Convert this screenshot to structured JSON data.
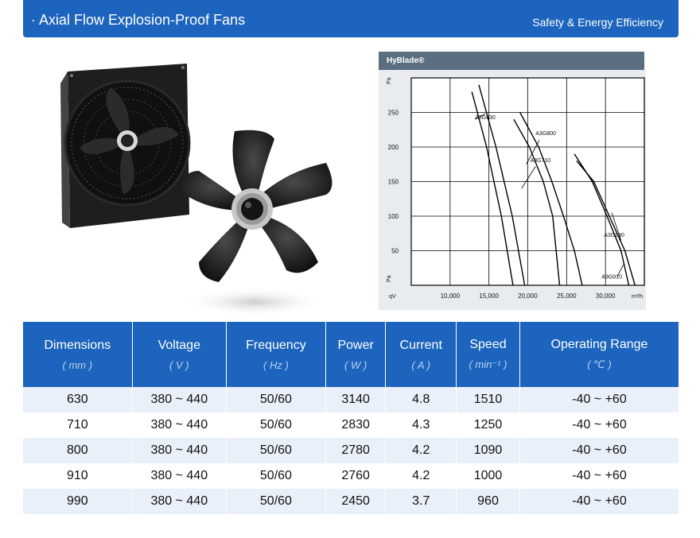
{
  "header": {
    "title": "· Axial Flow Explosion-Proof Fans",
    "subtitle": "Safety & Energy Efficiency"
  },
  "chart_data": {
    "type": "line",
    "title": "HyBlade®",
    "xlabel": "m³/h",
    "ylabel": "Pa",
    "x_prefix": "qV",
    "xlim": [
      5000,
      35000
    ],
    "ylim": [
      0,
      300
    ],
    "x_ticks": [
      "10,000",
      "15,000",
      "20,000",
      "25,000",
      "30,000"
    ],
    "y_ticks": [
      "50",
      "100",
      "150",
      "200",
      "250"
    ],
    "grid": true,
    "series": [
      {
        "name": "A3G630",
        "lines": [
          [
            [
              13700,
              290
            ],
            [
              15900,
              200
            ],
            [
              18000,
              100
            ],
            [
              19600,
              0
            ]
          ],
          [
            [
              12800,
              280
            ],
            [
              14700,
              200
            ],
            [
              16600,
              100
            ],
            [
              18100,
              0
            ]
          ]
        ]
      },
      {
        "name": "A3G800",
        "lines": [
          [
            [
              19000,
              250
            ],
            [
              21400,
              200
            ],
            [
              23100,
              150
            ],
            [
              24600,
              100
            ],
            [
              26000,
              50
            ],
            [
              27000,
              0
            ]
          ]
        ]
      },
      {
        "name": "A3G710",
        "lines": [
          [
            [
              18200,
              240
            ],
            [
              20200,
              200
            ],
            [
              22000,
              150
            ],
            [
              23200,
              100
            ],
            [
              24100,
              0
            ]
          ]
        ]
      },
      {
        "name": "A3G990",
        "lines": [
          [
            [
              26300,
              180
            ],
            [
              28500,
              150
            ],
            [
              30500,
              100
            ],
            [
              32500,
              50
            ],
            [
              33800,
              0
            ]
          ]
        ]
      },
      {
        "name": "A3G910",
        "lines": [
          [
            [
              26000,
              190
            ],
            [
              28300,
              150
            ],
            [
              30200,
              100
            ],
            [
              32000,
              50
            ],
            [
              33000,
              0
            ]
          ]
        ]
      }
    ],
    "label_anchors": {
      "A3G630": [
        13200,
        240
      ],
      "A3G800": [
        21000,
        217
      ],
      "A3G710": [
        20300,
        178
      ],
      "A3G990": [
        29800,
        70
      ],
      "A3G910": [
        29500,
        10
      ]
    }
  },
  "table": {
    "columns": [
      {
        "label": "Dimensions",
        "unit": "( mm )"
      },
      {
        "label": "Voltage",
        "unit": "( V )"
      },
      {
        "label": "Frequency",
        "unit": "( Hz )"
      },
      {
        "label": "Power",
        "unit": "( W )"
      },
      {
        "label": "Current",
        "unit": "( A )"
      },
      {
        "label": "Speed",
        "unit": "( min⁻¹ )"
      },
      {
        "label": "Operating Range",
        "unit": "( ℃ )"
      }
    ],
    "rows": [
      [
        "630",
        "380 ~ 440",
        "50/60",
        "3140",
        "4.8",
        "1510",
        "-40 ~ +60"
      ],
      [
        "710",
        "380 ~ 440",
        "50/60",
        "2830",
        "4.3",
        "1250",
        "-40 ~ +60"
      ],
      [
        "800",
        "380 ~ 440",
        "50/60",
        "2780",
        "4.2",
        "1090",
        "-40 ~ +60"
      ],
      [
        "910",
        "380 ~ 440",
        "50/60",
        "2760",
        "4.2",
        "1000",
        "-40 ~ +60"
      ],
      [
        "990",
        "380 ~ 440",
        "50/60",
        "2450",
        "3.7",
        "960",
        "-40 ~ +60"
      ]
    ]
  },
  "colors": {
    "header_bg": "#1c64bd",
    "row_alt": "#e9f0fa",
    "chart_head": "#5b6e80"
  }
}
